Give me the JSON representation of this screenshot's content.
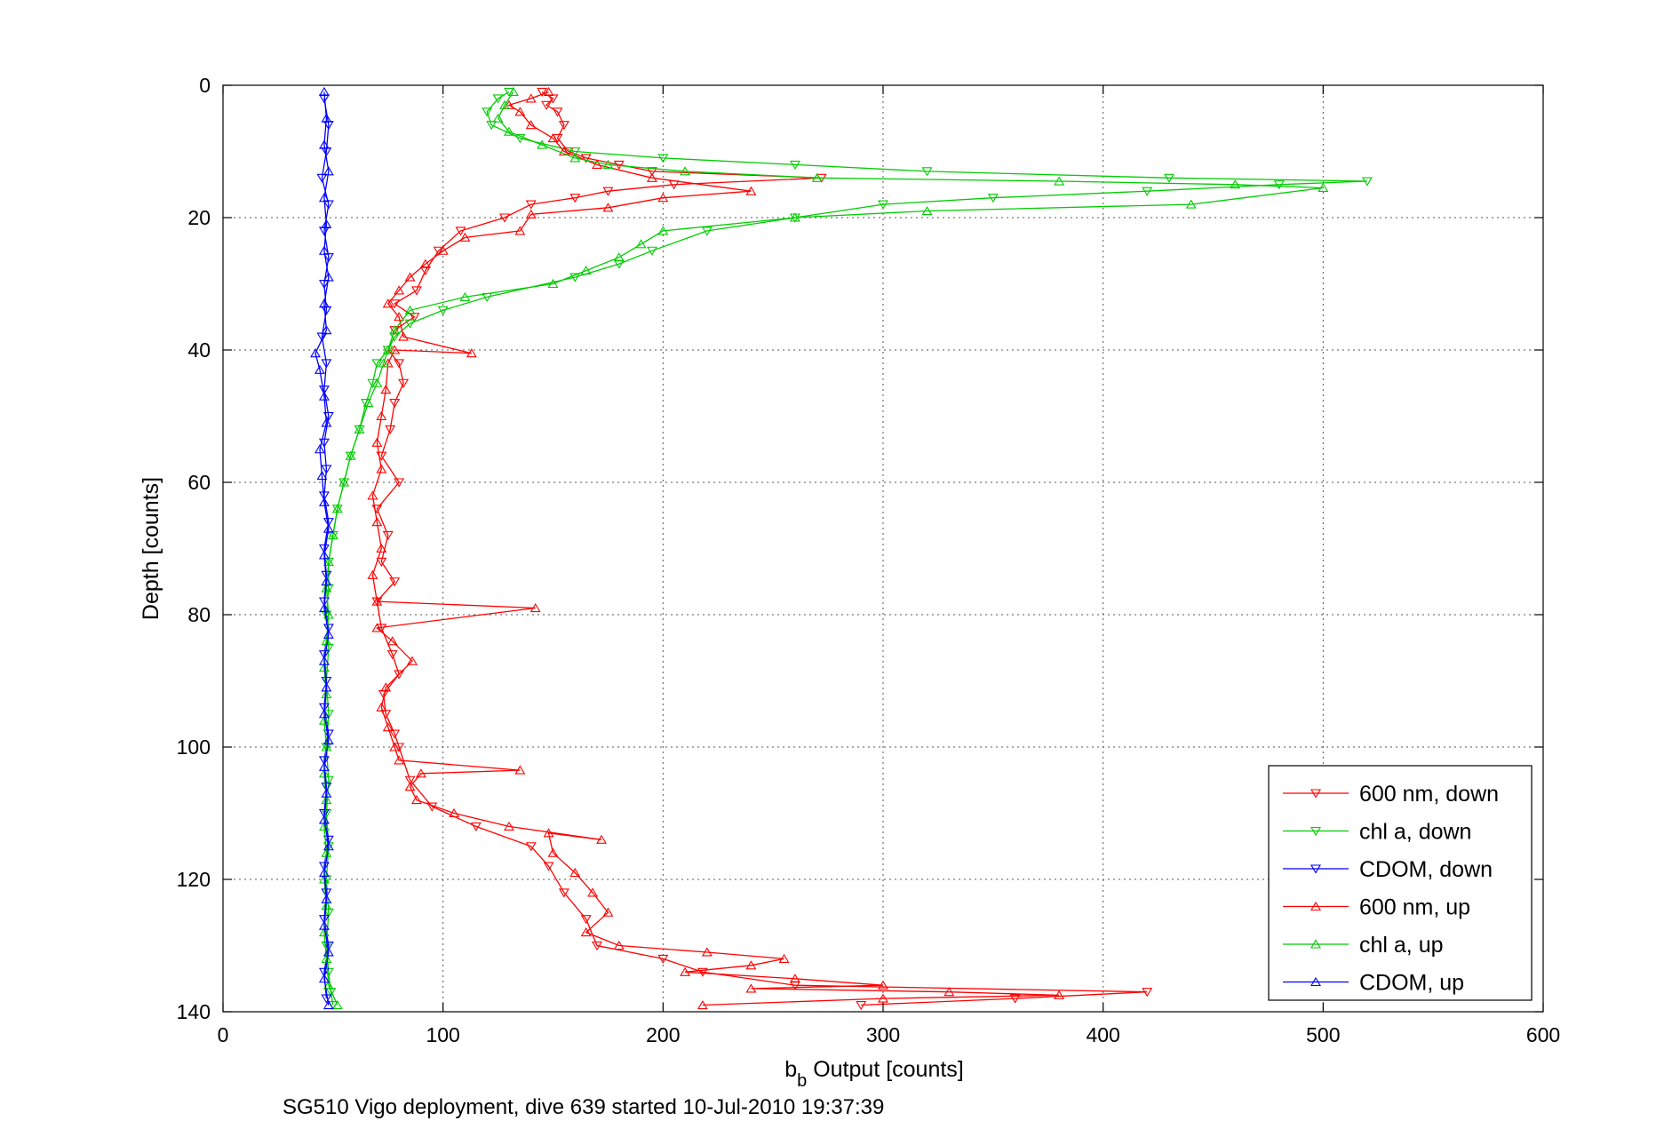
{
  "chart_data": {
    "type": "line",
    "xlabel_main": "b",
    "xlabel_sub": "b",
    "xlabel_rest": " Output [counts]",
    "ylabel": "Depth [counts]",
    "caption": "SG510 Vigo deployment, dive 639 started 10-Jul-2010 19:37:39",
    "xlim": [
      0,
      600
    ],
    "ylim": [
      0,
      140
    ],
    "y_reversed": true,
    "grid": true,
    "xticks": [
      "0",
      "100",
      "200",
      "300",
      "400",
      "500",
      "600"
    ],
    "yticks": [
      "0",
      "20",
      "40",
      "60",
      "80",
      "100",
      "120",
      "140"
    ],
    "legend_position": "bottom-right",
    "series": [
      {
        "name": "600 nm, down",
        "color": "#ff0000",
        "marker": "triangle-down",
        "points": [
          [
            145,
            1
          ],
          [
            150,
            2
          ],
          [
            147,
            3
          ],
          [
            152,
            4
          ],
          [
            155,
            6
          ],
          [
            152,
            8
          ],
          [
            157,
            10
          ],
          [
            165,
            11
          ],
          [
            180,
            12
          ],
          [
            195,
            13
          ],
          [
            272,
            14
          ],
          [
            205,
            15
          ],
          [
            175,
            16
          ],
          [
            160,
            17
          ],
          [
            140,
            18
          ],
          [
            128,
            20
          ],
          [
            108,
            22
          ],
          [
            98,
            25
          ],
          [
            92,
            28
          ],
          [
            88,
            31
          ],
          [
            78,
            33
          ],
          [
            87,
            35
          ],
          [
            78,
            37
          ],
          [
            75,
            40
          ],
          [
            80,
            42
          ],
          [
            82,
            45
          ],
          [
            78,
            48
          ],
          [
            76,
            52
          ],
          [
            72,
            56
          ],
          [
            80,
            60
          ],
          [
            70,
            64
          ],
          [
            75,
            68
          ],
          [
            72,
            72
          ],
          [
            78,
            75
          ],
          [
            70,
            78
          ],
          [
            72,
            82
          ],
          [
            77,
            86
          ],
          [
            80,
            89
          ],
          [
            73,
            92
          ],
          [
            74,
            95
          ],
          [
            78,
            98
          ],
          [
            80,
            100
          ],
          [
            85,
            105
          ],
          [
            95,
            109
          ],
          [
            115,
            112
          ],
          [
            140,
            115
          ],
          [
            148,
            118
          ],
          [
            155,
            122
          ],
          [
            165,
            126
          ],
          [
            170,
            130
          ],
          [
            200,
            132
          ],
          [
            218,
            134
          ],
          [
            260,
            136
          ],
          [
            420,
            137
          ],
          [
            360,
            138
          ],
          [
            290,
            139
          ]
        ]
      },
      {
        "name": "chl a, down",
        "color": "#00cc00",
        "marker": "triangle-down",
        "points": [
          [
            130,
            1
          ],
          [
            125,
            2
          ],
          [
            120,
            4
          ],
          [
            122,
            6
          ],
          [
            135,
            8
          ],
          [
            160,
            10
          ],
          [
            200,
            11
          ],
          [
            260,
            12
          ],
          [
            320,
            13
          ],
          [
            430,
            14
          ],
          [
            520,
            14.5
          ],
          [
            480,
            15
          ],
          [
            420,
            16
          ],
          [
            350,
            17
          ],
          [
            300,
            18
          ],
          [
            260,
            20
          ],
          [
            220,
            22
          ],
          [
            195,
            25
          ],
          [
            180,
            27
          ],
          [
            160,
            29
          ],
          [
            120,
            32
          ],
          [
            100,
            34
          ],
          [
            85,
            36
          ],
          [
            78,
            38
          ],
          [
            75,
            40
          ],
          [
            70,
            42
          ],
          [
            68,
            45
          ],
          [
            65,
            48
          ],
          [
            62,
            52
          ],
          [
            58,
            56
          ],
          [
            55,
            60
          ],
          [
            52,
            64
          ],
          [
            50,
            68
          ],
          [
            48,
            72
          ],
          [
            48,
            76
          ],
          [
            47,
            80
          ],
          [
            48,
            85
          ],
          [
            47,
            90
          ],
          [
            48,
            95
          ],
          [
            47,
            100
          ],
          [
            48,
            105
          ],
          [
            47,
            110
          ],
          [
            48,
            115
          ],
          [
            47,
            120
          ],
          [
            48,
            125
          ],
          [
            47,
            130
          ],
          [
            48,
            134
          ],
          [
            49,
            137
          ],
          [
            50,
            139
          ]
        ]
      },
      {
        "name": "CDOM, down",
        "color": "#0000ff",
        "marker": "triangle-down",
        "points": [
          [
            46,
            2
          ],
          [
            48,
            6
          ],
          [
            47,
            10
          ],
          [
            45,
            14
          ],
          [
            48,
            18
          ],
          [
            46,
            22
          ],
          [
            48,
            26
          ],
          [
            46,
            30
          ],
          [
            47,
            34
          ],
          [
            45,
            38
          ],
          [
            47,
            42
          ],
          [
            46,
            46
          ],
          [
            48,
            50
          ],
          [
            46,
            54
          ],
          [
            47,
            58
          ],
          [
            46,
            62
          ],
          [
            48,
            66
          ],
          [
            46,
            70
          ],
          [
            47,
            74
          ],
          [
            46,
            78
          ],
          [
            48,
            82
          ],
          [
            46,
            86
          ],
          [
            47,
            90
          ],
          [
            46,
            94
          ],
          [
            48,
            98
          ],
          [
            46,
            102
          ],
          [
            47,
            106
          ],
          [
            46,
            110
          ],
          [
            48,
            114
          ],
          [
            46,
            118
          ],
          [
            47,
            122
          ],
          [
            46,
            126
          ],
          [
            48,
            130
          ],
          [
            46,
            134
          ],
          [
            47,
            138
          ]
        ]
      },
      {
        "name": "600 nm, up",
        "color": "#ff0000",
        "marker": "triangle-up",
        "points": [
          [
            218,
            139
          ],
          [
            300,
            138
          ],
          [
            380,
            137.5
          ],
          [
            330,
            137
          ],
          [
            240,
            136.5
          ],
          [
            300,
            136
          ],
          [
            260,
            135
          ],
          [
            210,
            134
          ],
          [
            240,
            133
          ],
          [
            255,
            132
          ],
          [
            220,
            131
          ],
          [
            180,
            130
          ],
          [
            165,
            128
          ],
          [
            175,
            125
          ],
          [
            168,
            122
          ],
          [
            160,
            119
          ],
          [
            150,
            116
          ],
          [
            148,
            113
          ],
          [
            172,
            114
          ],
          [
            130,
            112
          ],
          [
            105,
            110
          ],
          [
            88,
            108
          ],
          [
            85,
            106
          ],
          [
            90,
            104
          ],
          [
            135,
            103.5
          ],
          [
            80,
            102
          ],
          [
            78,
            100
          ],
          [
            75,
            97
          ],
          [
            72,
            94
          ],
          [
            74,
            91
          ],
          [
            86,
            87
          ],
          [
            77,
            84
          ],
          [
            70,
            82
          ],
          [
            142,
            79
          ],
          [
            70,
            78
          ],
          [
            68,
            74
          ],
          [
            72,
            70
          ],
          [
            70,
            66
          ],
          [
            68,
            62
          ],
          [
            72,
            58
          ],
          [
            70,
            54
          ],
          [
            72,
            50
          ],
          [
            74,
            46
          ],
          [
            75,
            42
          ],
          [
            78,
            40
          ],
          [
            113,
            40.5
          ],
          [
            82,
            38
          ],
          [
            80,
            35
          ],
          [
            75,
            33
          ],
          [
            80,
            31
          ],
          [
            85,
            29
          ],
          [
            92,
            27
          ],
          [
            100,
            25
          ],
          [
            110,
            23
          ],
          [
            135,
            22
          ],
          [
            140,
            19.5
          ],
          [
            175,
            18.5
          ],
          [
            200,
            17
          ],
          [
            240,
            16
          ],
          [
            195,
            14
          ],
          [
            170,
            12
          ],
          [
            155,
            10
          ],
          [
            150,
            8
          ],
          [
            140,
            6
          ],
          [
            135,
            4
          ],
          [
            130,
            3
          ],
          [
            140,
            2
          ],
          [
            148,
            1
          ]
        ]
      },
      {
        "name": "chl a, up",
        "color": "#00cc00",
        "marker": "triangle-up",
        "points": [
          [
            52,
            139
          ],
          [
            48,
            136
          ],
          [
            47,
            132
          ],
          [
            46,
            128
          ],
          [
            47,
            124
          ],
          [
            46,
            120
          ],
          [
            47,
            116
          ],
          [
            46,
            112
          ],
          [
            47,
            108
          ],
          [
            46,
            104
          ],
          [
            47,
            100
          ],
          [
            46,
            96
          ],
          [
            47,
            92
          ],
          [
            46,
            88
          ],
          [
            47,
            84
          ],
          [
            48,
            80
          ],
          [
            47,
            76
          ],
          [
            48,
            72
          ],
          [
            50,
            68
          ],
          [
            52,
            64
          ],
          [
            55,
            60
          ],
          [
            58,
            56
          ],
          [
            62,
            52
          ],
          [
            66,
            48
          ],
          [
            70,
            45
          ],
          [
            73,
            42
          ],
          [
            75,
            40
          ],
          [
            78,
            37
          ],
          [
            85,
            34
          ],
          [
            110,
            32
          ],
          [
            150,
            30
          ],
          [
            165,
            28
          ],
          [
            180,
            26
          ],
          [
            190,
            24
          ],
          [
            200,
            22
          ],
          [
            260,
            20
          ],
          [
            320,
            19
          ],
          [
            440,
            18
          ],
          [
            500,
            15.5
          ],
          [
            460,
            15
          ],
          [
            380,
            14.5
          ],
          [
            270,
            14
          ],
          [
            210,
            13
          ],
          [
            175,
            12
          ],
          [
            160,
            11
          ],
          [
            145,
            9
          ],
          [
            130,
            7
          ],
          [
            125,
            5
          ],
          [
            128,
            3
          ],
          [
            132,
            1
          ]
        ]
      },
      {
        "name": "CDOM, up",
        "color": "#0000ff",
        "marker": "triangle-up",
        "points": [
          [
            48,
            139
          ],
          [
            46,
            135
          ],
          [
            48,
            131
          ],
          [
            46,
            127
          ],
          [
            47,
            123
          ],
          [
            46,
            119
          ],
          [
            48,
            115
          ],
          [
            46,
            111
          ],
          [
            47,
            107
          ],
          [
            46,
            103
          ],
          [
            48,
            99
          ],
          [
            46,
            95
          ],
          [
            47,
            91
          ],
          [
            46,
            87
          ],
          [
            48,
            83
          ],
          [
            46,
            79
          ],
          [
            47,
            75
          ],
          [
            46,
            71
          ],
          [
            48,
            67
          ],
          [
            46,
            63
          ],
          [
            45,
            59
          ],
          [
            44,
            55
          ],
          [
            47,
            51
          ],
          [
            46,
            47
          ],
          [
            44,
            43
          ],
          [
            42,
            40.5
          ],
          [
            47,
            37
          ],
          [
            46,
            33
          ],
          [
            48,
            29
          ],
          [
            46,
            25
          ],
          [
            47,
            21
          ],
          [
            46,
            17
          ],
          [
            48,
            13
          ],
          [
            46,
            9
          ],
          [
            47,
            5
          ],
          [
            46,
            1
          ]
        ]
      }
    ]
  }
}
